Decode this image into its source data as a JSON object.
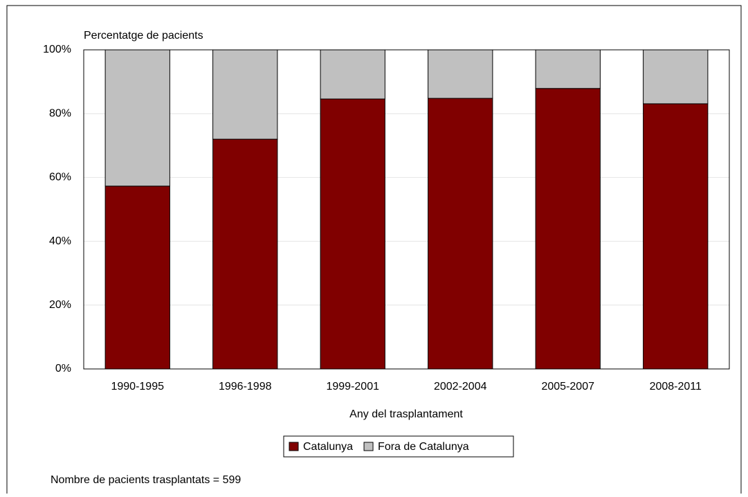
{
  "chart_data": {
    "type": "stacked_bar",
    "y_axis_label": "Percentatge de pacients",
    "x_axis_label": "Any del trasplantament",
    "note": "Nombre de pacients trasplantats = 599",
    "categories": [
      "1990-1995",
      "1996-1998",
      "1999-2001",
      "2002-2004",
      "2005-2007",
      "2008-2011"
    ],
    "series": [
      {
        "name": "Catalunya",
        "color": "#800000",
        "values": [
          57.3,
          72.0,
          84.6,
          84.8,
          87.9,
          83.1
        ]
      },
      {
        "name": "Fora de Catalunya",
        "color": "#c0c0c0",
        "values": [
          42.7,
          28.0,
          15.4,
          15.2,
          12.1,
          16.9
        ]
      }
    ],
    "ylim": [
      0,
      100
    ],
    "yticks": [
      {
        "value": 0,
        "label": "0%"
      },
      {
        "value": 20,
        "label": "20%"
      },
      {
        "value": 40,
        "label": "40%"
      },
      {
        "value": 60,
        "label": "60%"
      },
      {
        "value": 80,
        "label": "80%"
      },
      {
        "value": 100,
        "label": "100%"
      }
    ],
    "grid": true,
    "legend": "bottom"
  }
}
